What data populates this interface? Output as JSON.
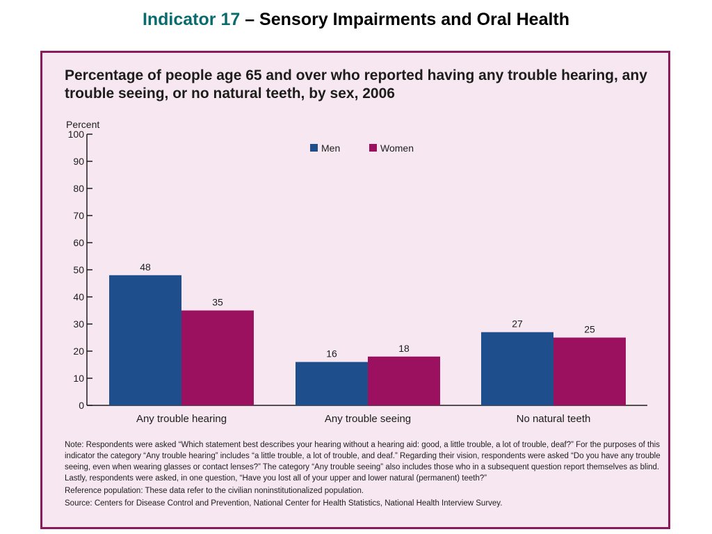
{
  "slide": {
    "title_accent": "Indicator 17",
    "title_rest": " – Sensory Impairments and Oral Health"
  },
  "colors": {
    "men": "#1f4e8c",
    "women": "#9b1160",
    "panel_bg": "#f6e7f1",
    "panel_border": "#8b1a5c",
    "title_accent": "#0a6b6e"
  },
  "chart_data": {
    "type": "bar",
    "title": "Percentage of people age 65 and over who reported having any trouble hearing, any trouble seeing, or no natural teeth, by sex, 2006",
    "ylabel": "Percent",
    "xlabel": "",
    "ylim": [
      0,
      100
    ],
    "yticks": [
      0,
      10,
      20,
      30,
      40,
      50,
      60,
      70,
      80,
      90,
      100
    ],
    "categories": [
      "Any trouble hearing",
      "Any trouble seeing",
      "No natural teeth"
    ],
    "series": [
      {
        "name": "Men",
        "values": [
          48,
          16,
          27
        ],
        "color": "#1f4e8c"
      },
      {
        "name": "Women",
        "values": [
          35,
          18,
          25
        ],
        "color": "#9b1160"
      }
    ],
    "legend": "top-center",
    "grid": false
  },
  "notes": {
    "note": "Note:  Respondents were asked “Which statement best describes your hearing without a hearing aid: good, a little trouble, a lot of trouble, deaf?” For the purposes of this indicator the category “Any trouble hearing” includes “a little trouble, a lot of trouble, and deaf.” Regarding their vision, respondents were asked “Do you have any trouble seeing, even when wearing glasses or contact lenses?” The category “Any trouble seeing” also includes those who in a subsequent question report themselves as blind. Lastly, respondents were asked, in one question, “Have you lost all of your upper and lower natural (permanent) teeth?”",
    "reference": "Reference population: These data refer to the civilian noninstitutionalized population.",
    "source": "Source:  Centers for Disease Control and Prevention, National Center for Health Statistics, National Health Interview Survey."
  }
}
